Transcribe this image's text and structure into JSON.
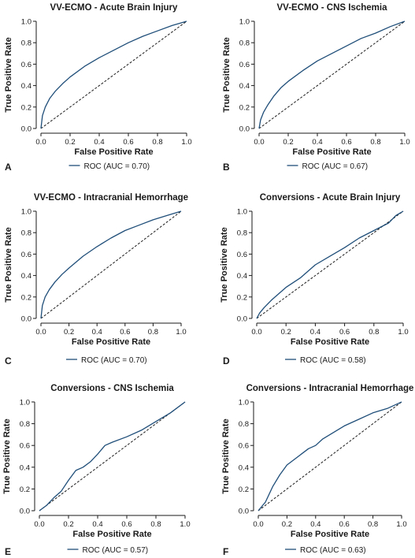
{
  "colors": {
    "roc": "#1f4e79",
    "diagonal": "#1a1a1a",
    "axis": "#1a1a1a"
  },
  "chart_data": [
    {
      "type": "line",
      "panel": "A",
      "title": "VV-ECMO - Acute Brain Injury",
      "xlabel": "False Positive Rate",
      "ylabel": "True Positive Rate",
      "xlim": [
        0,
        1
      ],
      "ylim": [
        0,
        1
      ],
      "ticks": [
        "0.0",
        "0.2",
        "0.4",
        "0.6",
        "0.8",
        "1.0"
      ],
      "legend": "ROC (AUC = 0.70)",
      "series": [
        {
          "name": "ROC (AUC = 0.70)",
          "x": [
            0,
            0.01,
            0.03,
            0.06,
            0.1,
            0.15,
            0.2,
            0.3,
            0.4,
            0.5,
            0.6,
            0.7,
            0.8,
            0.9,
            1.0
          ],
          "y": [
            0,
            0.12,
            0.2,
            0.28,
            0.35,
            0.42,
            0.48,
            0.58,
            0.66,
            0.73,
            0.8,
            0.86,
            0.91,
            0.96,
            1.0
          ]
        }
      ]
    },
    {
      "type": "line",
      "panel": "B",
      "title": "VV-ECMO - CNS Ischemia",
      "xlabel": "False Positive Rate",
      "ylabel": "True Positive Rate",
      "xlim": [
        0,
        1
      ],
      "ylim": [
        0,
        1
      ],
      "ticks": [
        "0.0",
        "0.2",
        "0.4",
        "0.6",
        "0.8",
        "1.0"
      ],
      "legend": "ROC (AUC = 0.67)",
      "series": [
        {
          "name": "ROC (AUC = 0.67)",
          "x": [
            0,
            0.01,
            0.03,
            0.06,
            0.1,
            0.15,
            0.2,
            0.3,
            0.4,
            0.5,
            0.6,
            0.7,
            0.8,
            0.9,
            1.0
          ],
          "y": [
            0,
            0.08,
            0.15,
            0.22,
            0.3,
            0.38,
            0.44,
            0.54,
            0.63,
            0.7,
            0.77,
            0.84,
            0.89,
            0.95,
            1.0
          ]
        }
      ]
    },
    {
      "type": "line",
      "panel": "C",
      "title": "VV-ECMO - Intracranial Hemorrhage",
      "xlabel": "False Positive Rate",
      "ylabel": "True Positive Rate",
      "xlim": [
        0,
        1
      ],
      "ylim": [
        0,
        1
      ],
      "ticks": [
        "0.0",
        "0.2",
        "0.4",
        "0.6",
        "0.8",
        "1.0"
      ],
      "legend": "ROC (AUC = 0.70)",
      "series": [
        {
          "name": "ROC (AUC = 0.70)",
          "x": [
            0,
            0.01,
            0.03,
            0.06,
            0.1,
            0.15,
            0.2,
            0.3,
            0.4,
            0.5,
            0.6,
            0.7,
            0.8,
            0.9,
            1.0
          ],
          "y": [
            0,
            0.12,
            0.2,
            0.27,
            0.34,
            0.41,
            0.47,
            0.58,
            0.67,
            0.75,
            0.82,
            0.87,
            0.92,
            0.96,
            1.0
          ]
        }
      ]
    },
    {
      "type": "line",
      "panel": "D",
      "title": "Conversions - Acute Brain Injury",
      "xlabel": "False Positive Rate",
      "ylabel": "True Positive Rate",
      "xlim": [
        0,
        1
      ],
      "ylim": [
        0,
        1
      ],
      "ticks": [
        "0.0",
        "0.2",
        "0.4",
        "0.6",
        "0.8",
        "1.0"
      ],
      "legend": "ROC (AUC = 0.58)",
      "series": [
        {
          "name": "ROC (AUC = 0.58)",
          "x": [
            0,
            0.02,
            0.05,
            0.1,
            0.15,
            0.2,
            0.3,
            0.4,
            0.5,
            0.6,
            0.7,
            0.8,
            0.9,
            0.95,
            1.0
          ],
          "y": [
            0,
            0.05,
            0.1,
            0.17,
            0.23,
            0.29,
            0.38,
            0.5,
            0.58,
            0.66,
            0.75,
            0.82,
            0.89,
            0.96,
            1.0
          ]
        }
      ]
    },
    {
      "type": "line",
      "panel": "E",
      "title": "Conversions - CNS Ischemia",
      "xlabel": "False Positive Rate",
      "ylabel": "True Positive Rate",
      "xlim": [
        0,
        1
      ],
      "ylim": [
        0,
        1
      ],
      "ticks": [
        "0.0",
        "0.2",
        "0.4",
        "0.6",
        "0.8",
        "1.0"
      ],
      "legend": "ROC (AUC = 0.57)",
      "series": [
        {
          "name": "ROC (AUC = 0.57)",
          "x": [
            0,
            0.05,
            0.1,
            0.15,
            0.2,
            0.25,
            0.3,
            0.35,
            0.4,
            0.45,
            0.5,
            0.6,
            0.7,
            0.8,
            0.9,
            1.0
          ],
          "y": [
            0,
            0.05,
            0.12,
            0.18,
            0.28,
            0.37,
            0.4,
            0.45,
            0.52,
            0.6,
            0.63,
            0.68,
            0.74,
            0.82,
            0.9,
            1.0
          ]
        }
      ]
    },
    {
      "type": "line",
      "panel": "F",
      "title": "Conversions - Intracranial Hemorrhage",
      "xlabel": "False Positive Rate",
      "ylabel": "True Positive Rate",
      "xlim": [
        0,
        1
      ],
      "ylim": [
        0,
        1
      ],
      "ticks": [
        "0.0",
        "0.2",
        "0.4",
        "0.6",
        "0.8",
        "1.0"
      ],
      "legend": "ROC (AUC = 0.63)",
      "series": [
        {
          "name": "ROC (AUC = 0.63)",
          "x": [
            0,
            0.05,
            0.1,
            0.15,
            0.2,
            0.25,
            0.3,
            0.35,
            0.4,
            0.45,
            0.5,
            0.6,
            0.7,
            0.8,
            0.9,
            1.0
          ],
          "y": [
            0,
            0.08,
            0.22,
            0.33,
            0.42,
            0.47,
            0.52,
            0.57,
            0.6,
            0.66,
            0.7,
            0.78,
            0.84,
            0.9,
            0.94,
            1.0
          ]
        }
      ]
    }
  ]
}
